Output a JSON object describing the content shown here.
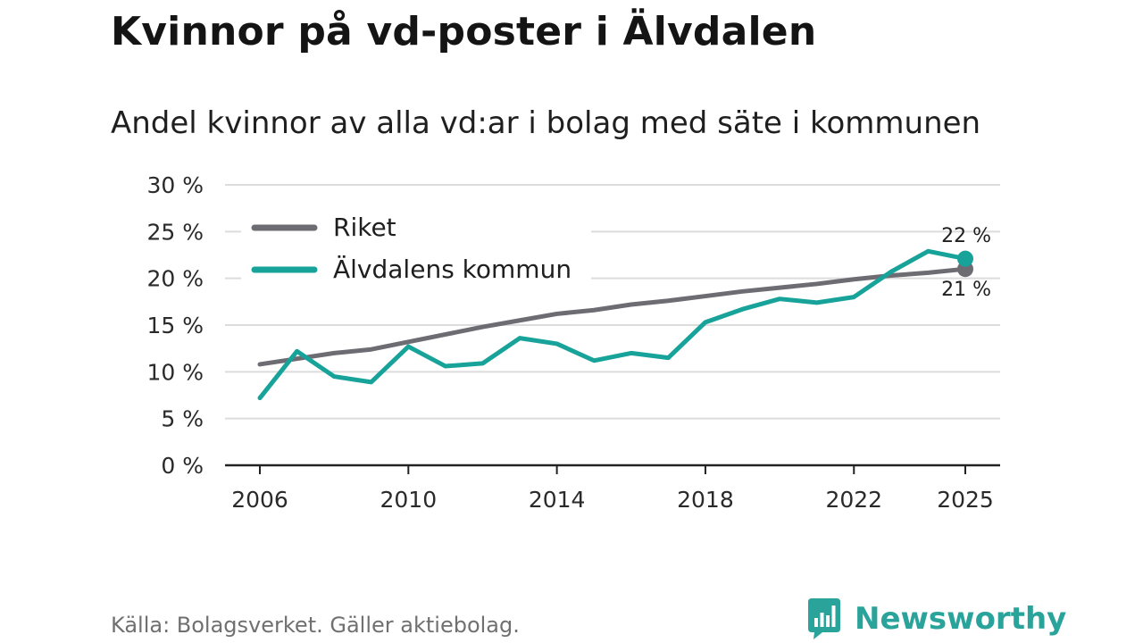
{
  "header": {
    "title": "Kvinnor på vd-poster i Älvdalen",
    "subtitle": "Andel kvinnor av alla vd:ar i bolag med säte i kommunen"
  },
  "footer": {
    "source": "Källa: Bolagsverket. Gäller aktiebolag.",
    "brand": "Newsworthy"
  },
  "colors": {
    "riket": "#6e6c73",
    "kommun": "#17a39a",
    "grid": "#dcdcdc",
    "axis": "#222222",
    "brand": "#2aa39b"
  },
  "chart_data": {
    "type": "line",
    "title": "Kvinnor på vd-poster i Älvdalen",
    "subtitle": "Andel kvinnor av alla vd:ar i bolag med säte i kommunen",
    "xlabel": "",
    "ylabel": "",
    "ylim": [
      0,
      30
    ],
    "xlim": [
      2006,
      2025
    ],
    "y_ticks": [
      0,
      5,
      10,
      15,
      20,
      25,
      30
    ],
    "y_tick_labels": [
      "0 %",
      "5 %",
      "10 %",
      "15 %",
      "20 %",
      "25 %",
      "30 %"
    ],
    "x_ticks": [
      2006,
      2010,
      2014,
      2018,
      2022,
      2025
    ],
    "x_tick_labels": [
      "2006",
      "2010",
      "2014",
      "2018",
      "2022",
      "2025"
    ],
    "grid": true,
    "legend_position": "top-left",
    "x": [
      2006,
      2007,
      2008,
      2009,
      2010,
      2011,
      2012,
      2013,
      2014,
      2015,
      2016,
      2017,
      2018,
      2019,
      2020,
      2021,
      2022,
      2023,
      2024,
      2025
    ],
    "series": [
      {
        "name": "Riket",
        "color": "#6e6c73",
        "values": [
          10.8,
          11.4,
          12.0,
          12.4,
          13.2,
          14.0,
          14.8,
          15.5,
          16.2,
          16.6,
          17.2,
          17.6,
          18.1,
          18.6,
          19.0,
          19.4,
          19.9,
          20.3,
          20.6,
          21.0
        ],
        "end_label": "21 %"
      },
      {
        "name": "Älvdalens kommun",
        "color": "#17a39a",
        "values": [
          7.2,
          12.2,
          9.5,
          8.9,
          12.7,
          10.6,
          10.9,
          13.6,
          13.0,
          11.2,
          12.0,
          11.5,
          15.3,
          16.7,
          17.8,
          17.4,
          18.0,
          20.7,
          22.9,
          22.1
        ],
        "end_label": "22 %"
      }
    ]
  }
}
